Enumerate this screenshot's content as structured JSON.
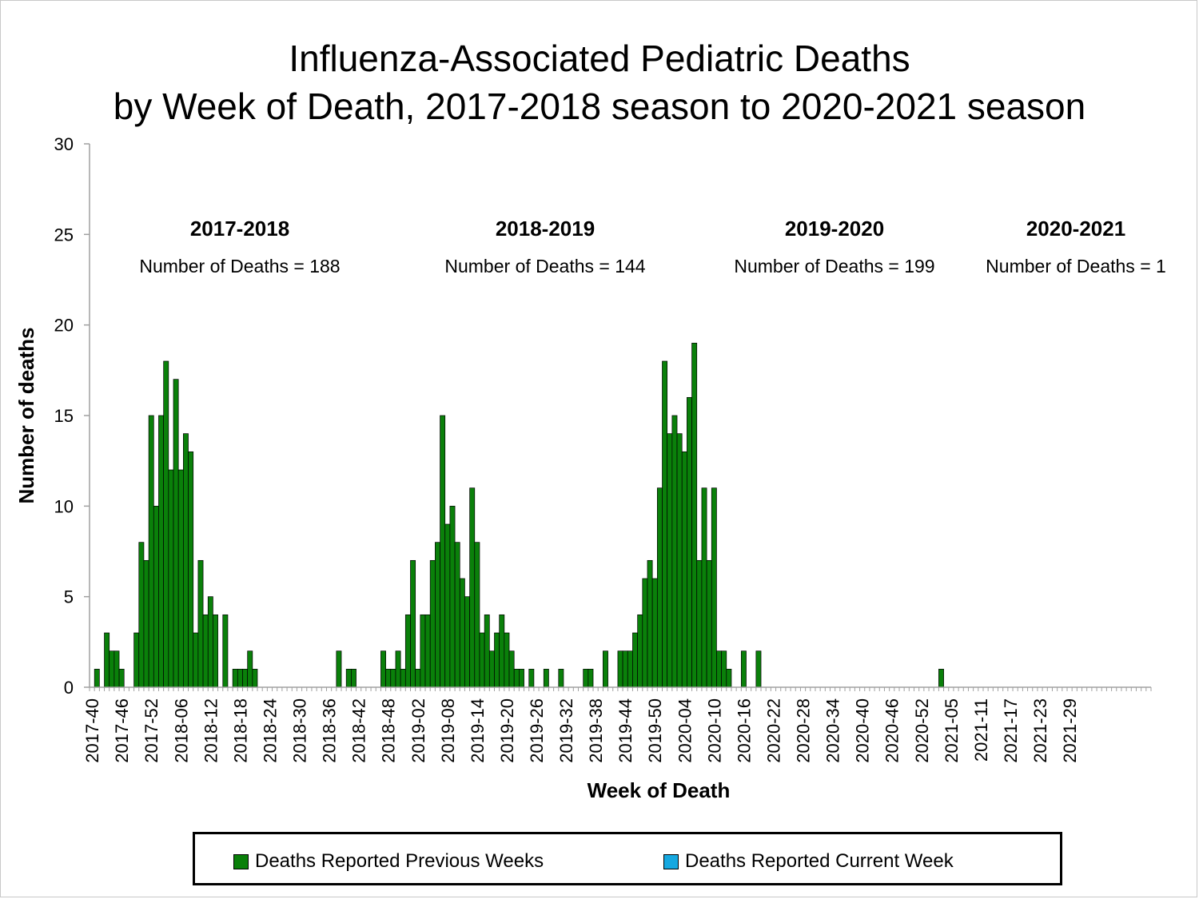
{
  "title": {
    "line1": "Influenza-Associated Pediatric Deaths",
    "line2": "by Week of Death, 2017-2018 season to 2020-2021 season"
  },
  "colors": {
    "previous": "#0a800a",
    "current": "#16a8e0",
    "axis": "#a0a0a0"
  },
  "chart_data": {
    "type": "bar",
    "xlabel": "Week of Death",
    "ylabel": "Number of deaths",
    "ylim": [
      0,
      30
    ],
    "yticks": [
      0,
      5,
      10,
      15,
      20,
      25,
      30
    ],
    "grid": false,
    "legend_position": "bottom",
    "x_tick_labels": [
      "2017-40",
      "2017-46",
      "2017-52",
      "2018-06",
      "2018-12",
      "2018-18",
      "2018-24",
      "2018-30",
      "2018-36",
      "2018-42",
      "2018-48",
      "2019-02",
      "2019-08",
      "2019-14",
      "2019-20",
      "2019-26",
      "2019-32",
      "2019-38",
      "2019-44",
      "2019-50",
      "2020-04",
      "2020-10",
      "2020-16",
      "2020-22",
      "2020-28",
      "2020-34",
      "2020-40",
      "2020-46",
      "2020-52",
      "2021-05",
      "2021-11",
      "2021-17",
      "2021-23",
      "2021-29"
    ],
    "series": [
      {
        "name": "Deaths Reported Previous Weeks",
        "color": "#0a800a",
        "values": [
          0,
          1,
          0,
          3,
          2,
          2,
          1,
          0,
          0,
          3,
          8,
          7,
          15,
          10,
          15,
          18,
          12,
          17,
          12,
          14,
          13,
          3,
          7,
          4,
          5,
          4,
          0,
          4,
          0,
          1,
          1,
          1,
          2,
          1,
          0,
          0,
          0,
          0,
          0,
          0,
          0,
          0,
          0,
          0,
          0,
          0,
          0,
          0,
          0,
          0,
          2,
          0,
          1,
          1,
          0,
          0,
          0,
          0,
          0,
          2,
          1,
          1,
          2,
          1,
          4,
          7,
          1,
          4,
          4,
          7,
          8,
          15,
          9,
          10,
          8,
          6,
          5,
          11,
          8,
          3,
          4,
          2,
          3,
          4,
          3,
          2,
          1,
          1,
          0,
          1,
          0,
          0,
          1,
          0,
          0,
          1,
          0,
          0,
          0,
          0,
          1,
          1,
          0,
          0,
          2,
          0,
          0,
          2,
          2,
          2,
          3,
          4,
          6,
          7,
          6,
          11,
          18,
          14,
          15,
          14,
          13,
          16,
          19,
          7,
          11,
          7,
          11,
          2,
          2,
          1,
          0,
          0,
          2,
          0,
          0,
          2,
          0,
          0,
          0,
          0,
          0,
          0,
          0,
          0,
          0,
          0,
          0,
          0,
          0,
          0,
          0,
          0,
          0,
          0,
          0,
          0,
          0,
          0,
          0,
          0,
          0,
          0,
          0,
          0,
          0,
          0,
          0,
          0,
          0,
          0,
          0,
          0,
          1,
          0,
          0,
          0,
          0,
          0,
          0,
          0,
          0,
          0,
          0,
          0,
          0,
          0,
          0,
          0,
          0,
          0,
          0,
          0,
          0,
          0,
          0,
          0,
          0,
          0,
          0,
          0,
          0,
          0,
          0,
          0,
          0,
          0,
          0,
          0,
          0,
          0,
          0,
          0,
          0,
          0,
          0
        ]
      },
      {
        "name": "Deaths Reported Current Week",
        "color": "#16a8e0",
        "values": []
      }
    ],
    "annotations": [
      {
        "season": "2017-2018",
        "text": "Number of Deaths = 188"
      },
      {
        "season": "2018-2019",
        "text": "Number of Deaths = 144"
      },
      {
        "season": "2019-2020",
        "text": "Number of Deaths = 199"
      },
      {
        "season": "2020-2021",
        "text": "Number of Deaths = 1"
      }
    ]
  },
  "legend": {
    "previous_label": "Deaths Reported Previous Weeks",
    "current_label": "Deaths Reported Current Week"
  }
}
